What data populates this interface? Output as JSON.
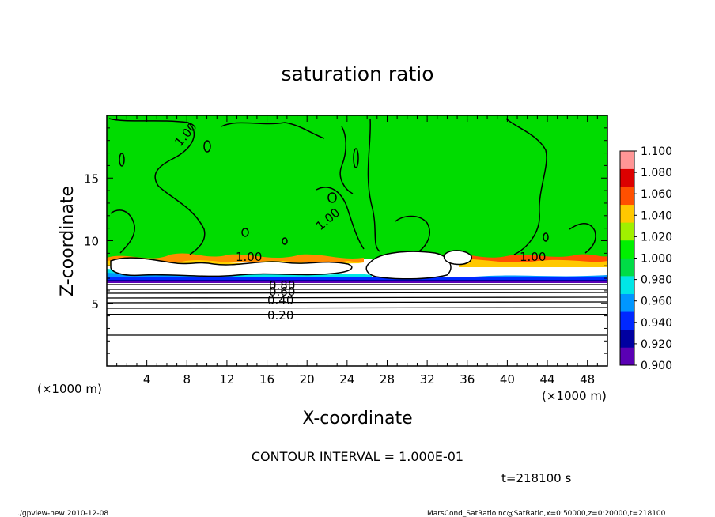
{
  "chart_data": {
    "type": "contour",
    "title": "saturation ratio",
    "xlabel": "X-coordinate",
    "ylabel": "Z-coordinate",
    "x_unit_label_left": "(×1000 m)",
    "x_unit_label_right": "(×1000 m)",
    "xlim": [
      0,
      50
    ],
    "ylim": [
      0,
      20
    ],
    "x_ticks": [
      4,
      8,
      12,
      16,
      20,
      24,
      28,
      32,
      36,
      40,
      44,
      48
    ],
    "y_ticks": [
      5,
      10,
      15
    ],
    "colorbar": {
      "levels": [
        "0.900",
        "0.920",
        "0.940",
        "0.960",
        "0.980",
        "1.000",
        "1.020",
        "1.040",
        "1.060",
        "1.080",
        "1.100"
      ],
      "colors": [
        "#5a00b4",
        "#0000a0",
        "#0028ff",
        "#0096ff",
        "#00e6e6",
        "#00dc46",
        "#00f000",
        "#a0f000",
        "#ffc800",
        "#ff5000",
        "#dc0000",
        "#ff9696"
      ]
    },
    "contour_labels": [
      "1.00",
      "1.00",
      "1.00",
      "1.00",
      "0.80",
      "0.60",
      "0.40",
      "0.20"
    ],
    "contour_interval": "CONTOUR INTERVAL = 1.000E-01",
    "time": "t=218100 s"
  },
  "footer": {
    "left": "./gpview-new  2010-12-08",
    "right": "MarsCond_SatRatio.nc@SatRatio,x=0:50000,z=0:20000,t=218100"
  }
}
